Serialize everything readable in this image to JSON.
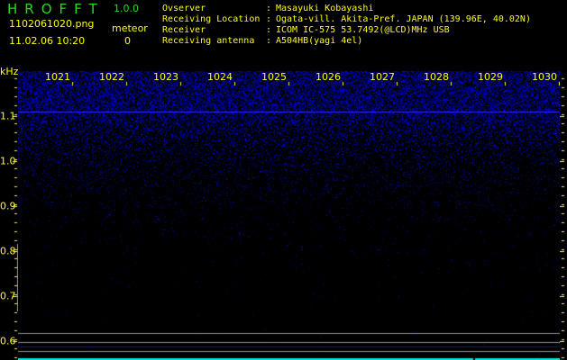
{
  "header": {
    "app_title": "HROFFT",
    "version": "1.0.0",
    "filename": "1102061020.png",
    "datetime": "11.02.06 10:20",
    "meteor_label": "meteor",
    "meteor_count": "0"
  },
  "info": [
    {
      "label": "Ovserver",
      "value": "Masayuki Kobayashi"
    },
    {
      "label": "Receiving Location",
      "value": "Ogata-vill. Akita-Pref. JAPAN (139.96E, 40.02N)"
    },
    {
      "label": "Receiver",
      "value": "ICOM IC-575 53.7492(@LCD)MHz USB"
    },
    {
      "label": "Receiving antenna",
      "value": "A504HB(yagi 4el)"
    }
  ],
  "chart_data": {
    "type": "heatmap",
    "ylabel": "kHz",
    "x_ticks": [
      "1021",
      "1022",
      "1023",
      "1024",
      "1025",
      "1026",
      "1027",
      "1028",
      "1029",
      "1030"
    ],
    "y_ticks": [
      "1.1",
      "1.0",
      "0.9",
      "0.8",
      "0.7",
      "0.6"
    ],
    "ylim": [
      0.58,
      1.2
    ],
    "colors": {
      "noise": "#1a1aff",
      "text": "#ffff00",
      "marker": "#22dd22",
      "baseline": "#00e0e0",
      "gridline": "#909090"
    }
  }
}
